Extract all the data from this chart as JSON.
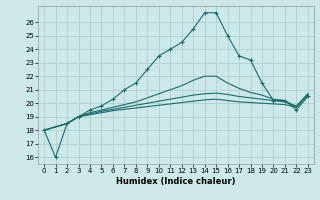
{
  "xlabel": "Humidex (Indice chaleur)",
  "bg_color": "#cce8e8",
  "grid_color": "#aacccc",
  "line_color": "#1a6b6b",
  "xlim": [
    -0.5,
    23.5
  ],
  "ylim": [
    15.5,
    27.2
  ],
  "xticks": [
    0,
    1,
    2,
    3,
    4,
    5,
    6,
    7,
    8,
    9,
    10,
    11,
    12,
    13,
    14,
    15,
    16,
    17,
    18,
    19,
    20,
    21,
    22,
    23
  ],
  "yticks": [
    16,
    17,
    18,
    19,
    20,
    21,
    22,
    23,
    24,
    25,
    26
  ],
  "line1_x": [
    0,
    1,
    2,
    3,
    4,
    5,
    6,
    7,
    8,
    9,
    10,
    11,
    12,
    13,
    14,
    15,
    16,
    17,
    18,
    19,
    20,
    21,
    22,
    23
  ],
  "line1_y": [
    18.0,
    16.0,
    18.5,
    19.0,
    19.5,
    19.8,
    20.3,
    21.0,
    21.5,
    22.5,
    23.5,
    24.0,
    24.5,
    25.5,
    26.7,
    26.7,
    25.0,
    23.5,
    23.2,
    21.5,
    20.2,
    20.2,
    19.5,
    20.5
  ],
  "line2_x": [
    0,
    2,
    3,
    4,
    5,
    6,
    7,
    8,
    9,
    10,
    11,
    12,
    13,
    14,
    15,
    16,
    17,
    18,
    19,
    20,
    21,
    22,
    23
  ],
  "line2_y": [
    18.0,
    18.5,
    19.0,
    19.3,
    19.5,
    19.7,
    19.9,
    20.1,
    20.4,
    20.7,
    21.0,
    21.3,
    21.7,
    22.0,
    22.0,
    21.5,
    21.1,
    20.8,
    20.6,
    20.3,
    20.2,
    19.7,
    20.7
  ],
  "line3_x": [
    0,
    2,
    3,
    4,
    5,
    6,
    7,
    8,
    9,
    10,
    11,
    12,
    13,
    14,
    15,
    16,
    17,
    18,
    19,
    20,
    21,
    22,
    23
  ],
  "line3_y": [
    18.0,
    18.5,
    19.0,
    19.2,
    19.4,
    19.55,
    19.7,
    19.85,
    20.0,
    20.15,
    20.3,
    20.45,
    20.6,
    20.7,
    20.75,
    20.65,
    20.5,
    20.4,
    20.3,
    20.2,
    20.1,
    19.8,
    20.7
  ],
  "line4_x": [
    0,
    2,
    3,
    4,
    5,
    6,
    7,
    8,
    9,
    10,
    11,
    12,
    13,
    14,
    15,
    16,
    17,
    18,
    19,
    20,
    21,
    22,
    23
  ],
  "line4_y": [
    18.0,
    18.5,
    19.0,
    19.15,
    19.3,
    19.45,
    19.55,
    19.65,
    19.75,
    19.85,
    19.95,
    20.05,
    20.15,
    20.25,
    20.3,
    20.2,
    20.1,
    20.05,
    20.0,
    19.95,
    19.9,
    19.7,
    20.6
  ]
}
